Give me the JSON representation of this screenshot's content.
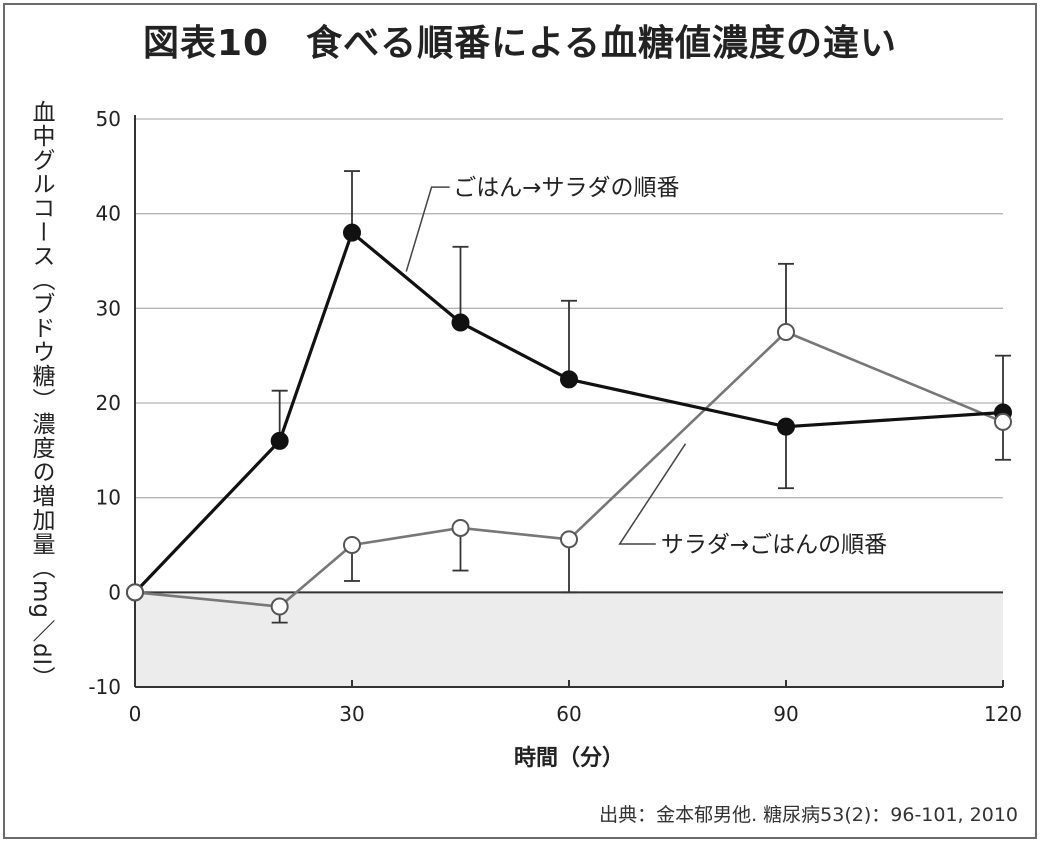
{
  "title": "図表10　食べる順番による血糖値濃度の違い",
  "source": "出典：金本郁男他. 糖尿病53(2)：96-101, 2010",
  "chart_data": {
    "type": "line",
    "title": "図表10　食べる順番による血糖値濃度の違い",
    "xlabel": "時間（分）",
    "ylabel": "血中グルコース（ブドウ糖）濃度の増加量（mg／dl）",
    "xlim": [
      0,
      120
    ],
    "ylim": [
      -10,
      50
    ],
    "x_ticks": [
      0,
      30,
      60,
      90,
      120
    ],
    "y_ticks": [
      -10,
      0,
      10,
      20,
      30,
      40,
      50
    ],
    "grid": "horizontal",
    "negative_region_shaded": true,
    "series": [
      {
        "name": "ごはん→サラダの順番",
        "marker": "filled-circle",
        "color": "#111111",
        "x": [
          0,
          20,
          30,
          45,
          60,
          90,
          120
        ],
        "y": [
          0,
          16,
          38,
          28.5,
          22.5,
          17.5,
          19
        ],
        "error_upper": [
          0,
          21.3,
          44.5,
          36.5,
          30.8,
          null,
          25
        ],
        "error_lower": [
          0,
          null,
          null,
          null,
          null,
          11,
          null
        ]
      },
      {
        "name": "サラダ→ごはんの順番",
        "marker": "open-circle",
        "color": "#777777",
        "x": [
          0,
          20,
          30,
          45,
          60,
          90,
          120
        ],
        "y": [
          0,
          -1.5,
          5,
          6.8,
          5.6,
          27.5,
          18
        ],
        "error_upper": [
          0,
          null,
          null,
          null,
          null,
          34.7,
          null
        ],
        "error_lower": [
          0,
          -3.2,
          1.2,
          2.3,
          0,
          null,
          14
        ]
      }
    ],
    "annotations": [
      {
        "text": "ごはん→サラダの順番",
        "series": 0
      },
      {
        "text": "サラダ→ごはんの順番",
        "series": 1
      }
    ]
  }
}
